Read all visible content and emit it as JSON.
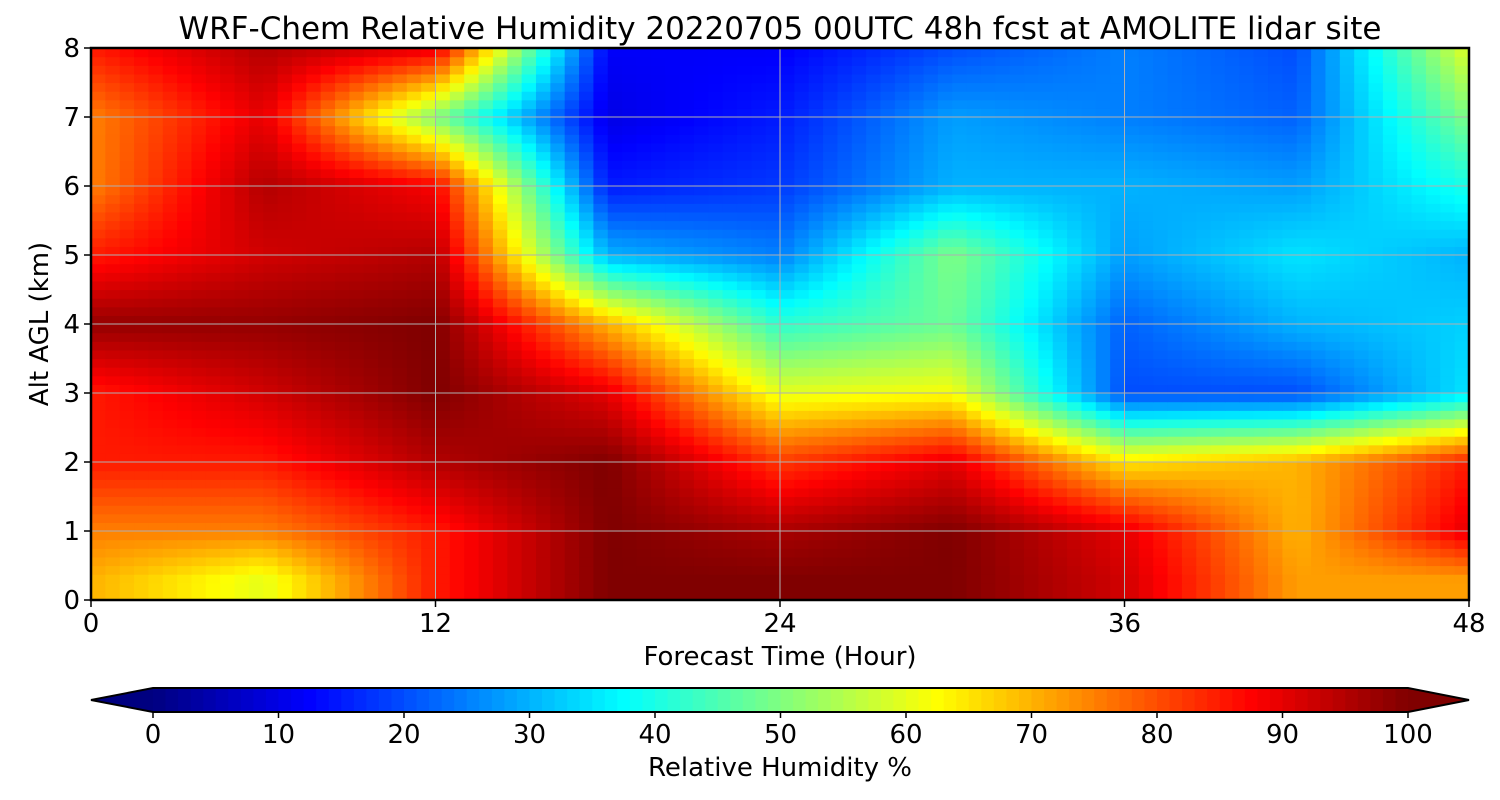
{
  "chart_data": {
    "type": "heatmap",
    "title": "WRF-Chem Relative Humidity 20220705 00UTC 48h fcst at AMOLITE lidar site",
    "xlabel": "Forecast Time (Hour)",
    "ylabel": "Alt AGL (km)",
    "xlim": [
      0,
      48
    ],
    "ylim": [
      0,
      8
    ],
    "x_ticks": [
      "0",
      "12",
      "24",
      "36",
      "48"
    ],
    "y_ticks": [
      "0",
      "1",
      "2",
      "3",
      "4",
      "5",
      "6",
      "7",
      "8"
    ],
    "grid": true,
    "colorbar": {
      "label": "Relative Humidity %",
      "ticks": [
        "0",
        "10",
        "20",
        "30",
        "40",
        "50",
        "60",
        "70",
        "80",
        "90",
        "100"
      ],
      "range": [
        0,
        100
      ],
      "colormap": "jet",
      "extend": "both",
      "orientation": "horizontal",
      "placement": "bottom"
    },
    "x": [
      0,
      6,
      12,
      18,
      24,
      30,
      36,
      42,
      48
    ],
    "y_km": [
      0.3,
      1,
      2,
      3,
      4,
      5,
      6,
      7,
      8
    ],
    "z_rh_percent": [
      [
        70,
        60,
        85,
        100,
        100,
        100,
        92,
        72,
        72
      ],
      [
        75,
        75,
        85,
        100,
        96,
        100,
        90,
        70,
        90
      ],
      [
        85,
        85,
        95,
        100,
        82,
        90,
        65,
        70,
        85
      ],
      [
        85,
        92,
        100,
        90,
        60,
        62,
        20,
        20,
        35
      ],
      [
        98,
        98,
        100,
        70,
        42,
        48,
        22,
        30,
        33
      ],
      [
        85,
        92,
        95,
        30,
        25,
        50,
        28,
        35,
        30
      ],
      [
        75,
        95,
        88,
        15,
        18,
        30,
        30,
        28,
        40
      ],
      [
        75,
        90,
        50,
        10,
        15,
        28,
        25,
        22,
        50
      ],
      [
        85,
        95,
        90,
        12,
        12,
        20,
        25,
        20,
        60
      ]
    ]
  }
}
